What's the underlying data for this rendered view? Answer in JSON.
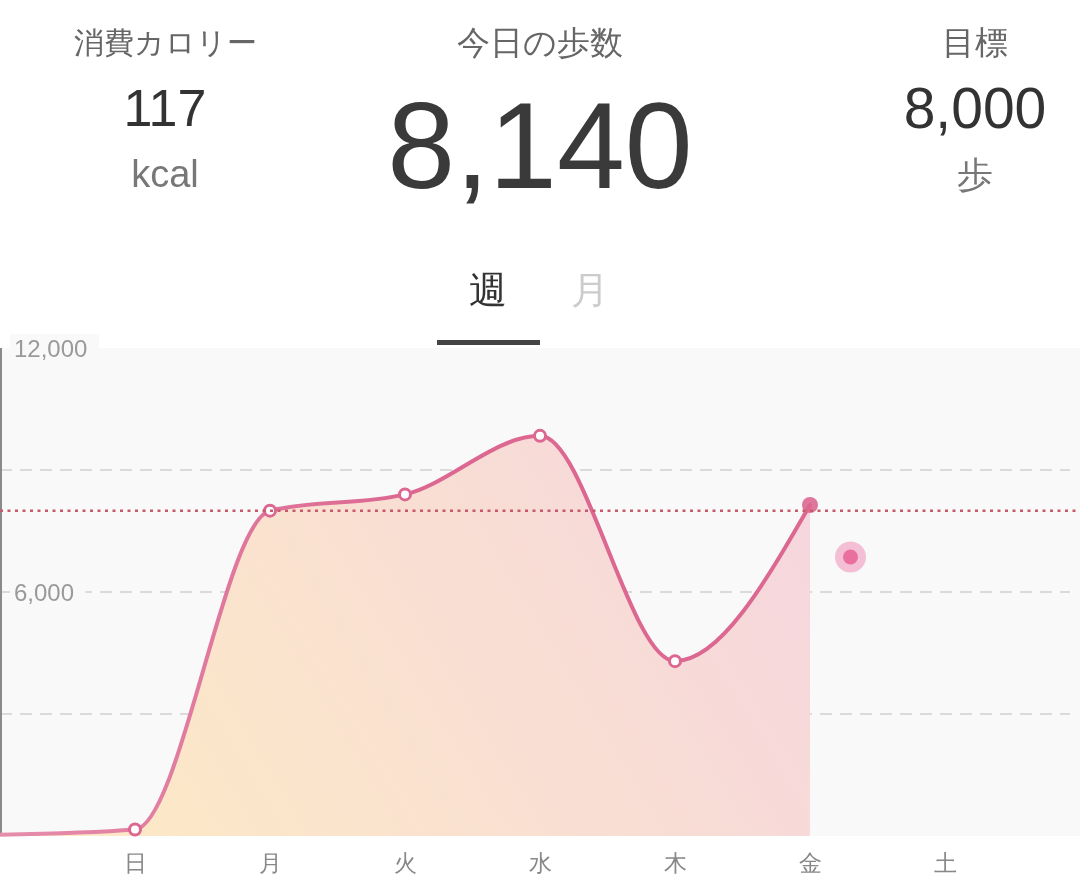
{
  "chart_data": {
    "type": "area",
    "annotations": [
      "消費カロリー",
      "117",
      "kcal",
      "今日の歩数",
      "8,140",
      "目標",
      "8,000",
      "歩",
      "週",
      "月"
    ],
    "categories": [
      null,
      "日",
      "月",
      "火",
      "水",
      "木",
      "金",
      "土"
    ],
    "ylim": [
      0,
      12000
    ],
    "yticks": [
      {
        "value": 3000,
        "label": null
      },
      {
        "value": 6000,
        "label": "6,000"
      },
      {
        "value": 9000,
        "label": null
      },
      {
        "value": 12000,
        "label": "12,000"
      }
    ],
    "grid": "y",
    "marker": "circle",
    "ref_lines": [
      {
        "axis": "y",
        "value": 8000,
        "color": "#c65a6a",
        "line_style": "dotted"
      }
    ],
    "series": [
      {
        "color": "#dc6790",
        "values": [
          30,
          160,
          8000,
          8400,
          9840,
          4300,
          8140,
          null
        ]
      }
    ]
  }
}
